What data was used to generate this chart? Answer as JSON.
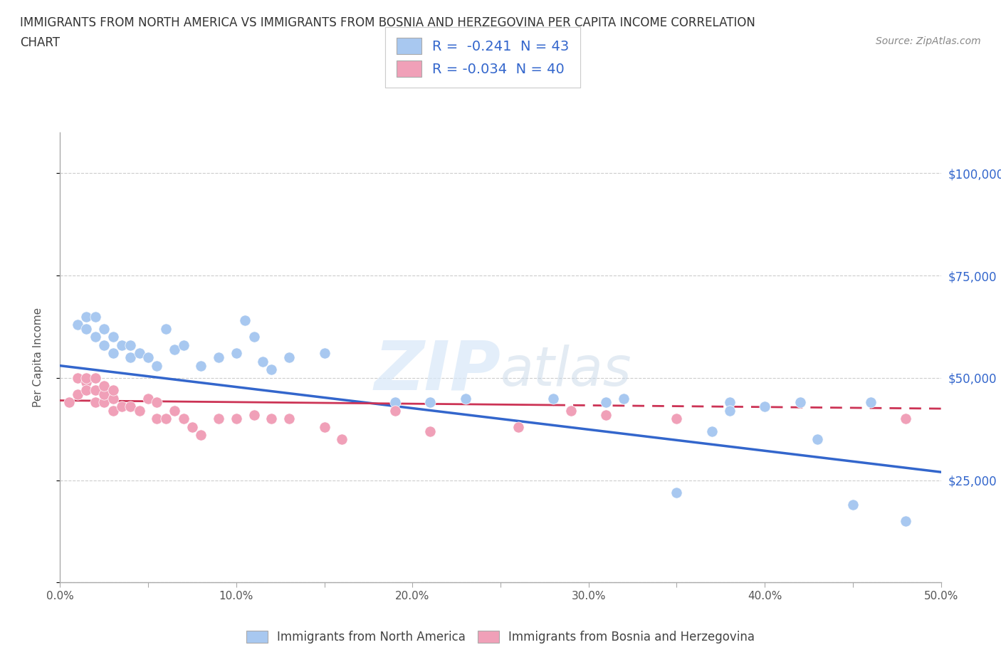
{
  "title_line1": "IMMIGRANTS FROM NORTH AMERICA VS IMMIGRANTS FROM BOSNIA AND HERZEGOVINA PER CAPITA INCOME CORRELATION",
  "title_line2": "CHART",
  "source": "Source: ZipAtlas.com",
  "ylabel": "Per Capita Income",
  "xlim": [
    0,
    0.5
  ],
  "ylim": [
    0,
    110000
  ],
  "xticks": [
    0.0,
    0.05,
    0.1,
    0.15,
    0.2,
    0.25,
    0.3,
    0.35,
    0.4,
    0.45,
    0.5
  ],
  "xtick_labels": [
    "0.0%",
    "",
    "10.0%",
    "",
    "20.0%",
    "",
    "30.0%",
    "",
    "40.0%",
    "",
    "50.0%"
  ],
  "yticks": [
    0,
    25000,
    50000,
    75000,
    100000
  ],
  "ytick_labels": [
    "",
    "$25,000",
    "$50,000",
    "$75,000",
    "$100,000"
  ],
  "gridline_color": "#cccccc",
  "background_color": "#ffffff",
  "legend_r1": "R =  -0.241  N = 43",
  "legend_r2": "R = -0.034  N = 40",
  "blue_scatter_color": "#a8c8f0",
  "pink_scatter_color": "#f0a0b8",
  "blue_line_color": "#3366cc",
  "pink_line_color": "#cc3355",
  "north_america_x": [
    0.01,
    0.015,
    0.015,
    0.02,
    0.02,
    0.025,
    0.025,
    0.03,
    0.03,
    0.035,
    0.04,
    0.04,
    0.045,
    0.05,
    0.055,
    0.06,
    0.065,
    0.07,
    0.08,
    0.09,
    0.1,
    0.105,
    0.11,
    0.115,
    0.12,
    0.13,
    0.15,
    0.19,
    0.21,
    0.23,
    0.28,
    0.31,
    0.32,
    0.35,
    0.37,
    0.38,
    0.38,
    0.4,
    0.42,
    0.43,
    0.45,
    0.46,
    0.48
  ],
  "north_america_y": [
    63000,
    65000,
    62000,
    65000,
    60000,
    58000,
    62000,
    56000,
    60000,
    58000,
    55000,
    58000,
    56000,
    55000,
    53000,
    62000,
    57000,
    58000,
    53000,
    55000,
    56000,
    64000,
    60000,
    54000,
    52000,
    55000,
    56000,
    44000,
    44000,
    45000,
    45000,
    44000,
    45000,
    22000,
    37000,
    44000,
    42000,
    43000,
    44000,
    35000,
    19000,
    44000,
    15000
  ],
  "bosnia_x": [
    0.005,
    0.01,
    0.01,
    0.015,
    0.015,
    0.015,
    0.02,
    0.02,
    0.02,
    0.025,
    0.025,
    0.025,
    0.03,
    0.03,
    0.03,
    0.035,
    0.04,
    0.045,
    0.05,
    0.055,
    0.055,
    0.06,
    0.065,
    0.07,
    0.075,
    0.08,
    0.09,
    0.1,
    0.11,
    0.12,
    0.13,
    0.15,
    0.16,
    0.19,
    0.21,
    0.26,
    0.29,
    0.31,
    0.35,
    0.48
  ],
  "bosnia_y": [
    44000,
    50000,
    46000,
    49000,
    47000,
    50000,
    44000,
    47000,
    50000,
    44000,
    46000,
    48000,
    42000,
    45000,
    47000,
    43000,
    43000,
    42000,
    45000,
    40000,
    44000,
    40000,
    42000,
    40000,
    38000,
    36000,
    40000,
    40000,
    41000,
    40000,
    40000,
    38000,
    35000,
    42000,
    37000,
    38000,
    42000,
    41000,
    40000,
    40000
  ]
}
